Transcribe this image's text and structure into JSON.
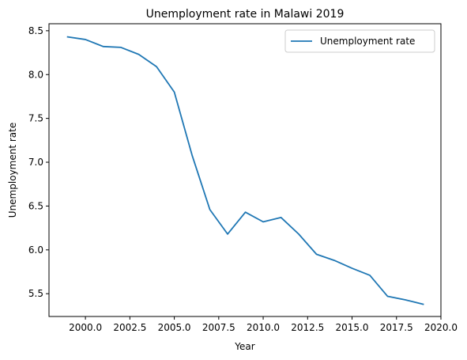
{
  "chart_data": {
    "type": "line",
    "title": "Unemployment rate in Malawi 2019",
    "xlabel": "Year",
    "ylabel": "Unemployment rate",
    "xlim": [
      1997.95,
      2020.0
    ],
    "ylim": [
      5.24,
      8.58
    ],
    "xticks": [
      2000.0,
      2002.5,
      2005.0,
      2007.5,
      2010.0,
      2012.5,
      2015.0,
      2017.5,
      2020.0
    ],
    "xtick_labels": [
      "2000.0",
      "2002.5",
      "2005.0",
      "2007.5",
      "2010.0",
      "2012.5",
      "2015.0",
      "2017.5",
      "2020.0"
    ],
    "yticks": [
      5.5,
      6.0,
      6.5,
      7.0,
      7.5,
      8.0,
      8.5
    ],
    "ytick_labels": [
      "5.5",
      "6.0",
      "6.5",
      "7.0",
      "7.5",
      "8.0",
      "8.5"
    ],
    "grid": false,
    "legend": "top-right",
    "series": [
      {
        "name": "Unemployment rate",
        "color": "#1f77b4",
        "x": [
          1999,
          2000,
          2001,
          2002,
          2003,
          2004,
          2005,
          2006,
          2007,
          2008,
          2009,
          2010,
          2011,
          2012,
          2013,
          2014,
          2015,
          2016,
          2017,
          2018,
          2019
        ],
        "y": [
          8.43,
          8.4,
          8.32,
          8.31,
          8.23,
          8.09,
          7.8,
          7.08,
          6.46,
          6.18,
          6.43,
          6.32,
          6.37,
          6.18,
          5.95,
          5.88,
          5.79,
          5.71,
          5.47,
          5.43,
          5.38
        ]
      }
    ]
  }
}
